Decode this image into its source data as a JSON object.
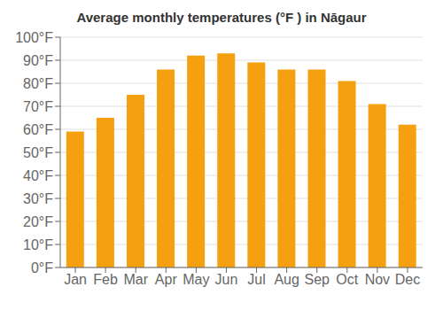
{
  "chart_data": {
    "type": "bar",
    "title": "Average monthly temperatures (°F ) in Nāgaur",
    "categories": [
      "Jan",
      "Feb",
      "Mar",
      "Apr",
      "May",
      "Jun",
      "Jul",
      "Aug",
      "Sep",
      "Oct",
      "Nov",
      "Dec"
    ],
    "values": [
      59,
      65,
      75,
      86,
      92,
      93,
      89,
      86,
      86,
      81,
      71,
      62
    ],
    "color": "#F5A010",
    "ylim": [
      0,
      100
    ],
    "yticks": [
      {
        "value": 0,
        "label": "0°F"
      },
      {
        "value": 10,
        "label": "10°F"
      },
      {
        "value": 20,
        "label": "20°F"
      },
      {
        "value": 30,
        "label": "30°F"
      },
      {
        "value": 40,
        "label": "40°F"
      },
      {
        "value": 50,
        "label": "50°F"
      },
      {
        "value": 60,
        "label": "60°F"
      },
      {
        "value": 70,
        "label": "70°F"
      },
      {
        "value": 80,
        "label": "80°F"
      },
      {
        "value": 90,
        "label": "90°F"
      },
      {
        "value": 100,
        "label": "100°F"
      }
    ],
    "grid": true
  }
}
